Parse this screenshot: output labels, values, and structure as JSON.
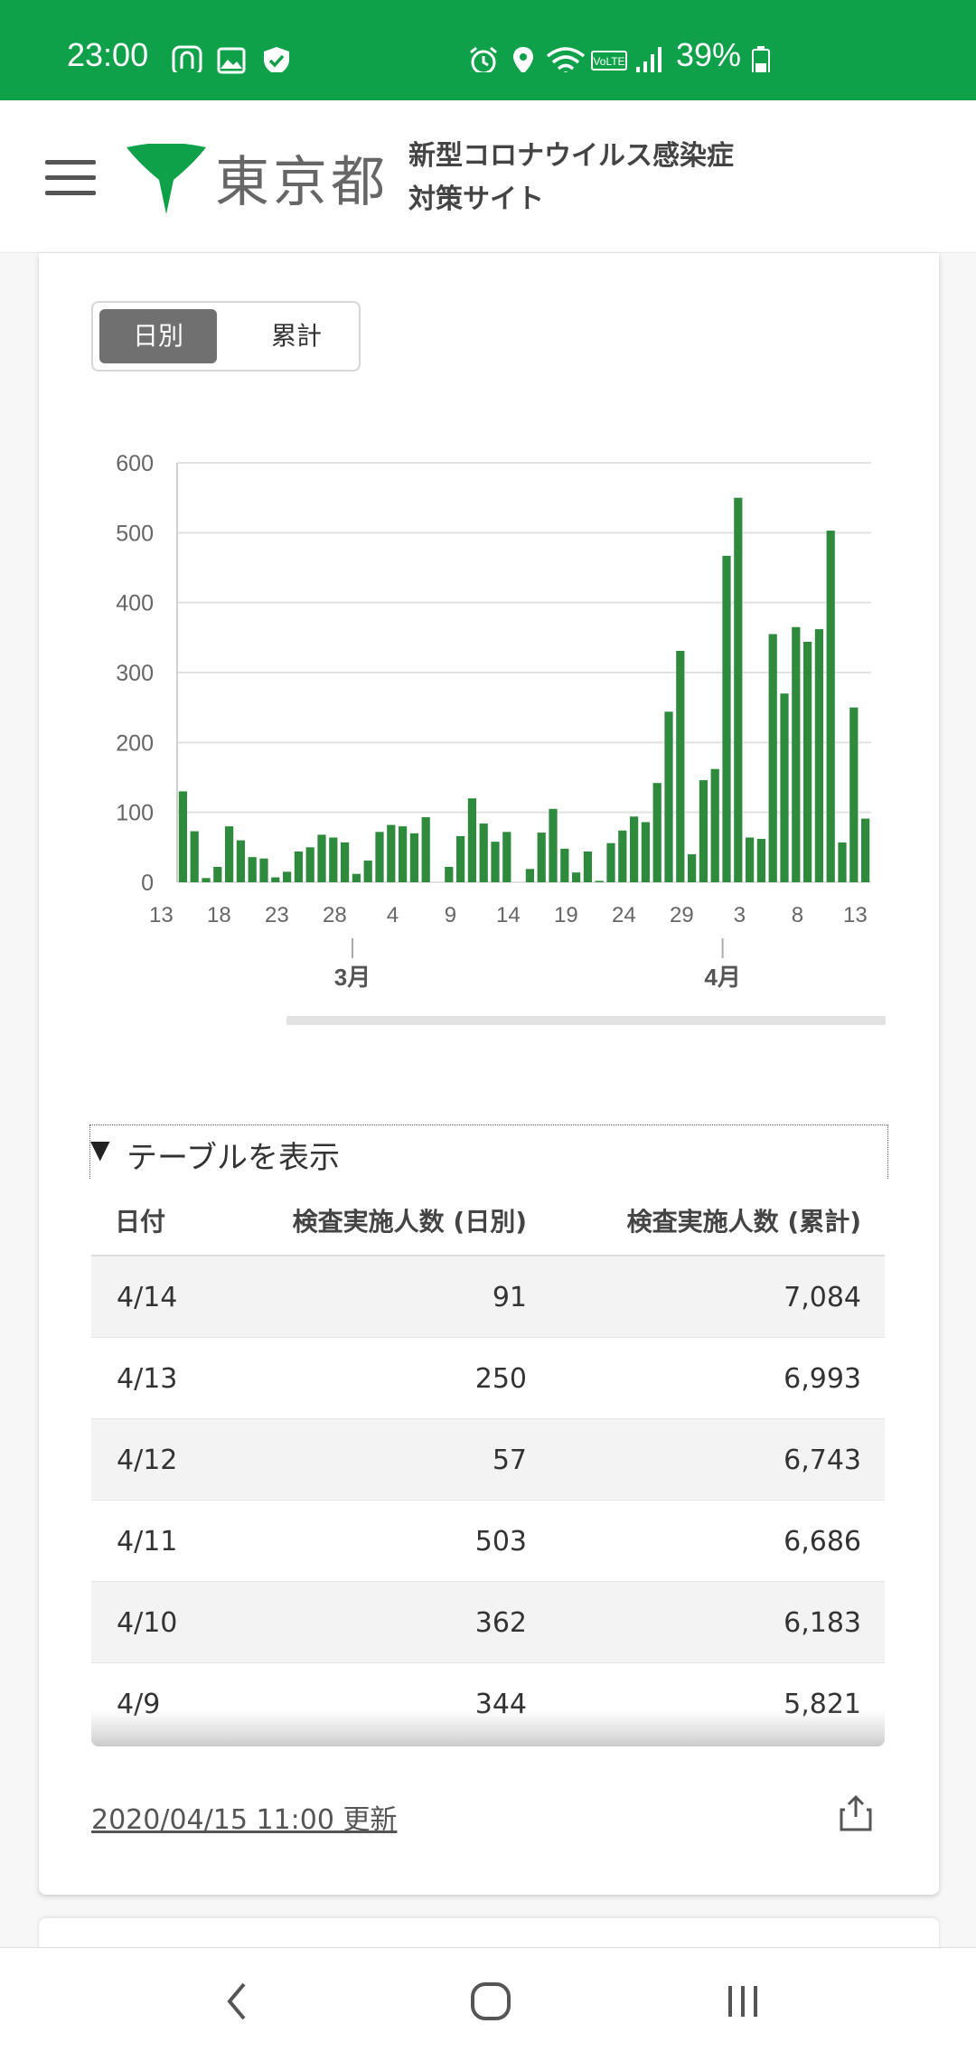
{
  "status_bar": {
    "time": "23:00",
    "battery": "39%",
    "icons": [
      "app-notification-icon",
      "gallery-icon",
      "shield-icon",
      "alarm-icon",
      "location-icon",
      "wifi-icon",
      "volte-icon",
      "signal-icon",
      "battery-icon"
    ],
    "background": "#0fa04a"
  },
  "header": {
    "logo_text": "東京都",
    "site_title_line1": "新型コロナウイルス感染症",
    "site_title_line2": "対策サイト",
    "logo_color": "#0fa04a"
  },
  "toggle": {
    "daily": "日別",
    "cumulative": "累計"
  },
  "chart_data": {
    "type": "bar",
    "color": "#2e8b3d",
    "yticks": [
      0,
      100,
      200,
      300,
      400,
      500,
      600
    ],
    "ylim": [
      0,
      600
    ],
    "xtick_labels": [
      "13",
      "18",
      "23",
      "28",
      "4",
      "9",
      "14",
      "19",
      "24",
      "29",
      "3",
      "8",
      "13"
    ],
    "month_labels": [
      "3月",
      "4月"
    ],
    "values": [
      130,
      73,
      6,
      22,
      80,
      60,
      36,
      34,
      7,
      15,
      44,
      50,
      68,
      64,
      57,
      12,
      31,
      72,
      82,
      80,
      70,
      93,
      0,
      22,
      66,
      120,
      84,
      58,
      72,
      0,
      19,
      71,
      105,
      48,
      14,
      44,
      2,
      56,
      74,
      94,
      86,
      142,
      244,
      331,
      40,
      146,
      162,
      467,
      550,
      64,
      62,
      355,
      270,
      365,
      344,
      362,
      503,
      57,
      250,
      91
    ]
  },
  "table": {
    "toggle_label": "テーブルを表示",
    "headers": [
      "日付",
      "検査実施人数 (日別)",
      "検査実施人数 (累計)"
    ],
    "rows": [
      [
        "4/14",
        "91",
        "7,084"
      ],
      [
        "4/13",
        "250",
        "6,993"
      ],
      [
        "4/12",
        "57",
        "6,743"
      ],
      [
        "4/11",
        "503",
        "6,686"
      ],
      [
        "4/10",
        "362",
        "6,183"
      ],
      [
        "4/9",
        "344",
        "5,821"
      ]
    ]
  },
  "footer": {
    "updated": "2020/04/15 11:00 更新"
  }
}
